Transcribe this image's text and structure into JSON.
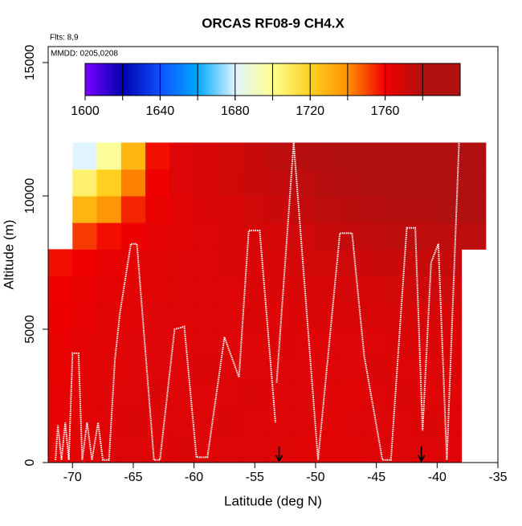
{
  "chart_data": {
    "type": "heatmap",
    "title": "ORCAS RF08-9 CH4.X",
    "annotations": [
      "Flts: 8,9",
      "MMDD: 0205,0208"
    ],
    "xlabel": "Latitude (deg N)",
    "ylabel": "Altitude (m)",
    "xlim": [
      -72,
      -35
    ],
    "ylim": [
      0,
      15600
    ],
    "xticks": [
      -70,
      -65,
      -60,
      -55,
      -50,
      -45,
      -40,
      -35
    ],
    "yticks": [
      0,
      5000,
      10000,
      15000
    ],
    "xbins": [
      -72,
      -70,
      -68,
      -66,
      -64,
      -62,
      -60,
      -58,
      -56,
      -54,
      -52,
      -50,
      -48,
      -46,
      -44,
      -42,
      -40,
      -38,
      -36
    ],
    "ybins": [
      0,
      1000,
      2000,
      3000,
      4000,
      5000,
      6000,
      7000,
      8000,
      9000,
      10000,
      11000,
      12000
    ],
    "z": [
      [
        1772,
        1774,
        1776,
        1776,
        1776,
        1777,
        1776,
        1776,
        1776,
        1776,
        1775,
        1775,
        1775,
        1776,
        1776,
        1776,
        1776,
        null
      ],
      [
        1773,
        1775,
        1776,
        1777,
        1776,
        1776,
        1776,
        1777,
        1776,
        1776,
        1776,
        1775,
        1776,
        1776,
        1776,
        1777,
        1776,
        null
      ],
      [
        1773,
        1775,
        1776,
        1776,
        1777,
        1776,
        1776,
        1776,
        1777,
        1776,
        1776,
        1776,
        1775,
        1776,
        1777,
        1776,
        1776,
        null
      ],
      [
        1772,
        1774,
        1775,
        1776,
        1776,
        1776,
        1777,
        1776,
        1776,
        1776,
        1776,
        1776,
        1776,
        1777,
        1776,
        1776,
        1777,
        null
      ],
      [
        1772,
        1774,
        1775,
        1776,
        1776,
        1776,
        1776,
        1776,
        1776,
        1777,
        1776,
        1776,
        1776,
        1776,
        1777,
        1777,
        1777,
        null
      ],
      [
        1771,
        1773,
        1775,
        1775,
        1776,
        1776,
        1776,
        1776,
        1777,
        1776,
        1777,
        1777,
        1778,
        1778,
        1778,
        1778,
        1778,
        null
      ],
      [
        1770,
        1772,
        1774,
        1775,
        1775,
        1776,
        1776,
        1776,
        1777,
        1777,
        1778,
        1778,
        1779,
        1779,
        1780,
        1781,
        1781,
        null
      ],
      [
        1768,
        1770,
        1773,
        1774,
        1775,
        1776,
        1776,
        1777,
        1777,
        1778,
        1779,
        1780,
        1781,
        1782,
        1782,
        1783,
        1783,
        null
      ],
      [
        null,
        1762,
        1768,
        1771,
        1774,
        1775,
        1776,
        1777,
        1778,
        1779,
        1781,
        1783,
        1784,
        1785,
        1786,
        1786,
        1786,
        1786
      ],
      [
        null,
        1738,
        1748,
        1765,
        1772,
        1775,
        1777,
        1778,
        1780,
        1782,
        1784,
        1786,
        1787,
        1788,
        1789,
        1789,
        1790,
        1790
      ],
      [
        null,
        1716,
        1730,
        1752,
        1770,
        1776,
        1778,
        1780,
        1782,
        1784,
        1786,
        1788,
        1789,
        1790,
        1791,
        1791,
        1792,
        1792
      ],
      [
        null,
        1690,
        1708,
        1738,
        1768,
        1776,
        1778,
        1780,
        1783,
        1786,
        1788,
        1789,
        1790,
        1791,
        1792,
        1792,
        1792,
        1791
      ]
    ],
    "clim": [
      1600,
      1800
    ],
    "cticks": [
      1600,
      1640,
      1680,
      1720,
      1760
    ],
    "colorscale": [
      "#7a00ff",
      "#0000b0",
      "#1050ff",
      "#00a8ff",
      "#e0f4ff",
      "#ffff90",
      "#ffd020",
      "#ff9000",
      "#f00000",
      "#b01010"
    ],
    "track": {
      "color": "#ffffff",
      "x": [
        -71.4,
        -71.2,
        -70.9,
        -70.6,
        -70.3,
        -70.0,
        -69.5,
        -69.2,
        -68.8,
        -68.4,
        -67.9,
        -67.5,
        -67.0,
        -66.5,
        -66.1,
        -65.2,
        -64.7,
        -63.3,
        -62.8,
        -61.6,
        -60.8,
        -59.8,
        -58.9,
        -57.5,
        -56.3,
        -55.5,
        -54.6,
        -53.3,
        null,
        -53.2,
        -51.8,
        -49.8,
        -48.0,
        -47.0,
        -46.0,
        -44.5,
        -43.8,
        -42.5,
        -41.8,
        -41.2,
        -40.5,
        -39.9,
        -39.2,
        -38.2
      ],
      "y": [
        100,
        1400,
        100,
        1500,
        100,
        4100,
        4100,
        100,
        1500,
        100,
        1500,
        100,
        100,
        3900,
        5600,
        8200,
        8200,
        100,
        100,
        5000,
        5100,
        200,
        200,
        4700,
        3200,
        8700,
        8700,
        1500,
        null,
        3000,
        12000,
        100,
        8600,
        8600,
        4000,
        100,
        100,
        8800,
        8800,
        1200,
        7500,
        8200,
        100,
        12000
      ]
    },
    "arrows_x": [
      -53,
      -41.3
    ]
  }
}
